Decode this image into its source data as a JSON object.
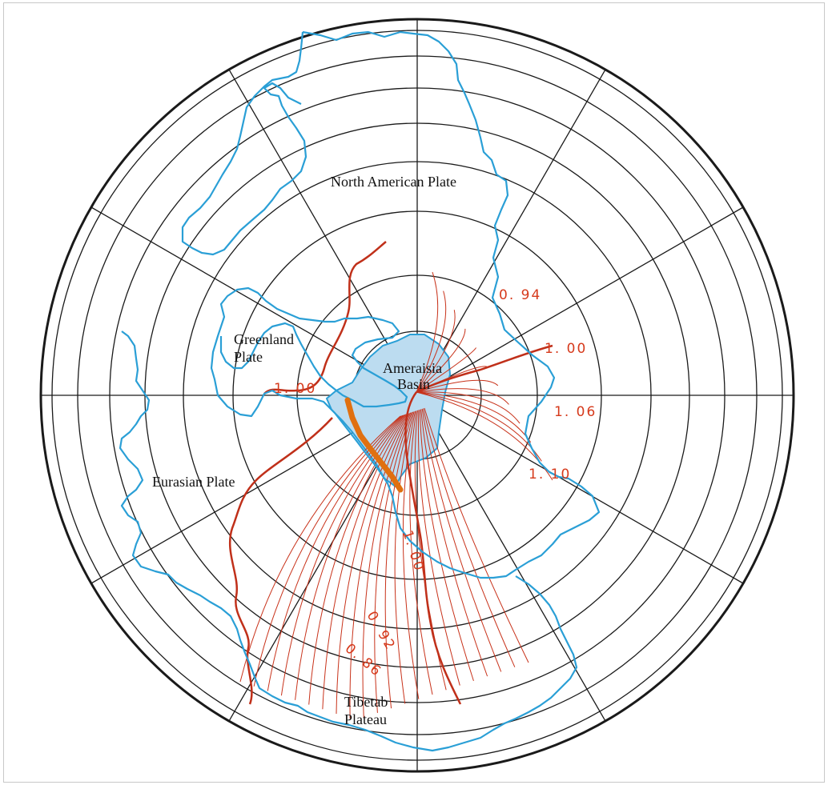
{
  "map": {
    "projection": "polar stereographic",
    "colors": {
      "graticule": "#1a1a1a",
      "coastline": "#2a9fd6",
      "basin_fill": "#bcdcf0",
      "contour": "#c8321a",
      "contour_major": "#c0301a",
      "label_red": "#d63a1c",
      "ridge": "#e07010"
    },
    "labels": {
      "north_american_plate": "North American Plate",
      "greenland_plate_line1": "Greenland",
      "greenland_plate_line2": "Plate",
      "ameraisia_basin_line1": "Ameraisia",
      "ameraisia_basin_line2": "Basin",
      "eurasian_plate": "Eurasian Plate",
      "tibetab_plateau_line1": "Tibetab",
      "tibetab_plateau_line2": "Plateau"
    },
    "contour_labels": {
      "c094": "0. 94",
      "c100_ne": "1. 00",
      "c106": "1. 06",
      "c110": "1. 10",
      "c100_w": "1. 00",
      "c100_s": "1. 00",
      "c092": "0. 92",
      "c086": "0. 86"
    }
  }
}
